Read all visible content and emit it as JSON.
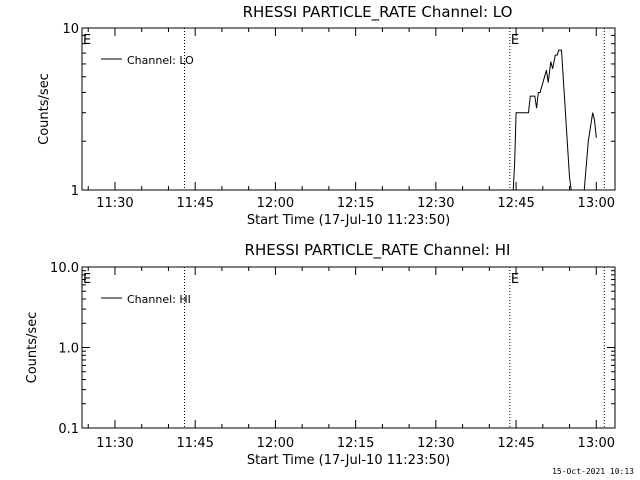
{
  "chart_data": [
    {
      "type": "line",
      "title": "RHESSI PARTICLE_RATE Channel: LO",
      "xlabel": "Start Time (17-Jul-10 11:23:50)",
      "ylabel": "Counts/sec",
      "xlim": [
        "11:23:50",
        "13:03:30"
      ],
      "ylim": [
        1,
        10
      ],
      "yscale": "log",
      "xticks": [
        "11:30",
        "11:45",
        "12:00",
        "12:15",
        "12:30",
        "12:45",
        "13:00"
      ],
      "yticks": [
        "1",
        "10"
      ],
      "grid": false,
      "legend": {
        "position": "top-left",
        "entries": [
          "Channel: LO"
        ]
      },
      "series": [
        {
          "name": "Channel: LO",
          "x": [
            "12:44:00",
            "12:44:45",
            "12:45:00",
            "12:47:20",
            "12:47:40",
            "12:48:30",
            "12:48:50",
            "12:49:10",
            "12:49:30",
            "12:50:40",
            "12:51:00",
            "12:51:30",
            "12:51:50",
            "12:52:20",
            "12:52:40",
            "12:53:00",
            "12:53:30",
            "12:55:00",
            "12:56:30",
            "12:57:00",
            "12:58:30",
            "12:59:20",
            "12:59:40",
            "13:00:00"
          ],
          "y": [
            0.5,
            1.5,
            3.0,
            3.0,
            3.8,
            3.8,
            3.2,
            4.0,
            4.0,
            5.5,
            4.6,
            6.2,
            5.6,
            6.8,
            6.8,
            7.3,
            7.3,
            1.2,
            0.5,
            0.5,
            2.0,
            3.0,
            2.7,
            2.1
          ]
        }
      ],
      "vertical_markers": [
        {
          "time": "11:43:00",
          "label": ""
        },
        {
          "time": "12:43:50",
          "label": "E"
        },
        {
          "time": "13:01:30",
          "label": ""
        }
      ],
      "edge_label": "E"
    },
    {
      "type": "line",
      "title": "RHESSI PARTICLE_RATE Channel: HI",
      "xlabel": "Start Time (17-Jul-10 11:23:50)",
      "ylabel": "Counts/sec",
      "xlim": [
        "11:23:50",
        "13:03:30"
      ],
      "ylim": [
        0.1,
        10
      ],
      "yscale": "log",
      "xticks": [
        "11:30",
        "11:45",
        "12:00",
        "12:15",
        "12:30",
        "12:45",
        "13:00"
      ],
      "yticks": [
        "0.1",
        "1.0",
        "10.0"
      ],
      "grid": false,
      "legend": {
        "position": "top-left",
        "entries": [
          "Channel: HI"
        ]
      },
      "series": [
        {
          "name": "Channel: HI",
          "x": [],
          "y": []
        }
      ],
      "vertical_markers": [
        {
          "time": "11:43:00",
          "label": ""
        },
        {
          "time": "12:43:50",
          "label": "E"
        },
        {
          "time": "13:01:30",
          "label": ""
        }
      ],
      "edge_label": "E"
    }
  ],
  "footer": {
    "timestamp": "15-Oct-2021 10:13"
  }
}
